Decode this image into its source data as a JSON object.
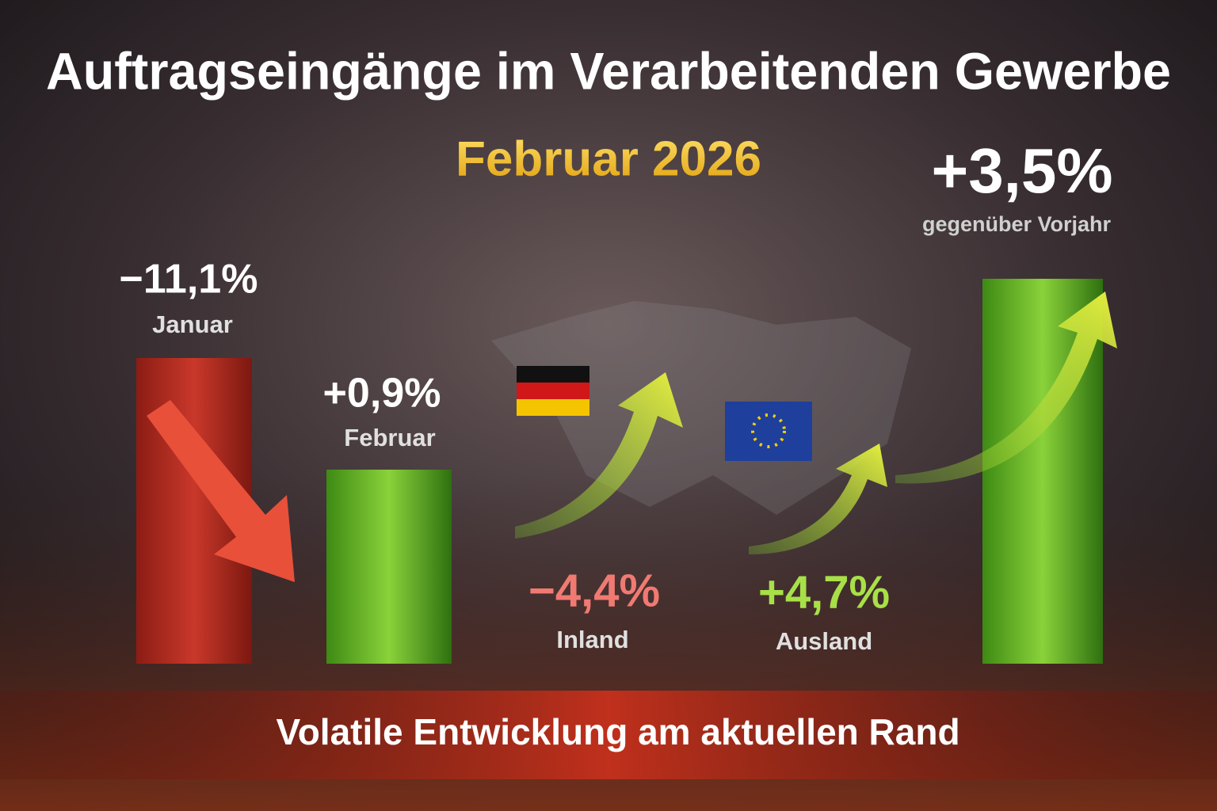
{
  "header": {
    "title": "Auftragseingänge im Verarbeitenden Gewerbe",
    "subtitle": "Februar 2026"
  },
  "items": [
    {
      "value": "−11,1%",
      "label": "Januar"
    },
    {
      "value": "+0,9%",
      "label": "Februar"
    },
    {
      "value": "−4,4%",
      "label": "Inland"
    },
    {
      "value": "+4,7%",
      "label": "Ausland"
    },
    {
      "value": "+3,5%",
      "label": "gegenüber Vorjahr"
    }
  ],
  "footer": "Volatile Entwicklung am aktuellen Rand"
}
